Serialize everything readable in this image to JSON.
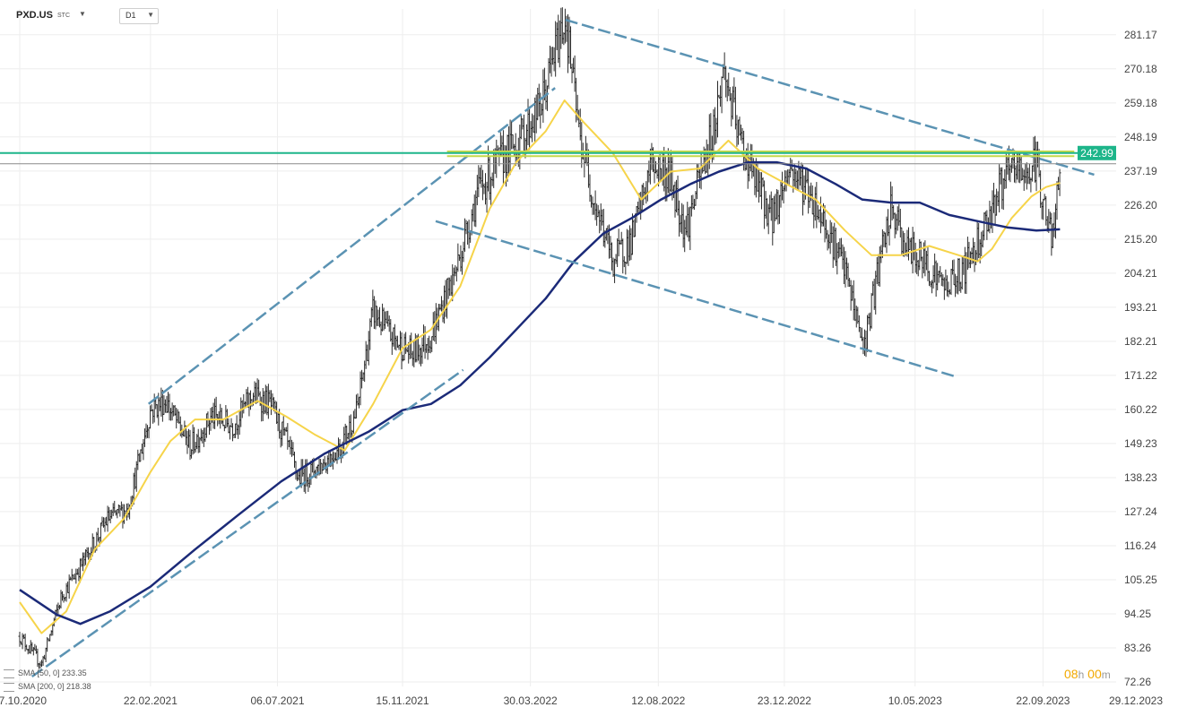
{
  "symbol": {
    "name": "PXD.US",
    "market": "STC"
  },
  "timeframe": "D1",
  "countdown": {
    "hours": "08",
    "h_unit": "h",
    "minutes": "00",
    "m_unit": "m"
  },
  "indicators": [
    {
      "label": "SMA [50, 0]",
      "value": "233.35"
    },
    {
      "label": "SMA [200, 0]",
      "value": "218.38"
    }
  ],
  "colors": {
    "price_bar": "#2b2b2b",
    "sma50": "#f6d44a",
    "sma200": "#1b2a78",
    "trendline": "#5b93b3",
    "resistance": "#c6d84a",
    "level_line": "#1db58a",
    "current_badge": "#6b6b6b",
    "grid": "#eeeeee"
  },
  "chart_data": {
    "type": "line",
    "ylim": [
      72.26,
      292.0
    ],
    "y_ticks": [
      "281.17",
      "270.18",
      "259.18",
      "248.19",
      "237.19",
      "226.20",
      "215.20",
      "204.21",
      "193.21",
      "182.21",
      "171.22",
      "160.22",
      "149.23",
      "138.23",
      "127.24",
      "116.24",
      "105.25",
      "94.25",
      "83.26",
      "72.26"
    ],
    "x_ticks": [
      "07.10.2020",
      "22.02.2021",
      "06.07.2021",
      "15.11.2021",
      "30.03.2022",
      "12.08.2022",
      "23.12.2022",
      "10.05.2023",
      "22.09.2023",
      "29.12.2023"
    ],
    "horizontal_levels": [
      {
        "value": 242.99,
        "label": "242.99",
        "kind": "level"
      },
      {
        "value": 239.53,
        "label": "239.53",
        "kind": "current"
      }
    ],
    "price_keypoints": [
      {
        "date": "2020-10-07",
        "value": 87
      },
      {
        "date": "2020-10-30",
        "value": 78
      },
      {
        "date": "2020-11-20",
        "value": 100
      },
      {
        "date": "2020-12-15",
        "value": 112
      },
      {
        "date": "2021-01-08",
        "value": 125
      },
      {
        "date": "2021-01-29",
        "value": 128
      },
      {
        "date": "2021-02-22",
        "value": 160
      },
      {
        "date": "2021-03-10",
        "value": 163
      },
      {
        "date": "2021-04-05",
        "value": 148
      },
      {
        "date": "2021-04-28",
        "value": 158
      },
      {
        "date": "2021-05-20",
        "value": 155
      },
      {
        "date": "2021-06-10",
        "value": 165
      },
      {
        "date": "2021-06-28",
        "value": 162
      },
      {
        "date": "2021-07-15",
        "value": 150
      },
      {
        "date": "2021-07-28",
        "value": 138
      },
      {
        "date": "2021-08-20",
        "value": 142
      },
      {
        "date": "2021-09-10",
        "value": 148
      },
      {
        "date": "2021-09-28",
        "value": 160
      },
      {
        "date": "2021-10-15",
        "value": 192
      },
      {
        "date": "2021-11-05",
        "value": 183
      },
      {
        "date": "2021-11-25",
        "value": 178
      },
      {
        "date": "2021-12-15",
        "value": 184
      },
      {
        "date": "2022-01-10",
        "value": 205
      },
      {
        "date": "2022-02-02",
        "value": 230
      },
      {
        "date": "2022-02-25",
        "value": 240
      },
      {
        "date": "2022-03-20",
        "value": 248
      },
      {
        "date": "2022-04-10",
        "value": 258
      },
      {
        "date": "2022-04-28",
        "value": 279
      },
      {
        "date": "2022-05-06",
        "value": 287
      },
      {
        "date": "2022-05-20",
        "value": 250
      },
      {
        "date": "2022-06-05",
        "value": 228
      },
      {
        "date": "2022-06-25",
        "value": 208
      },
      {
        "date": "2022-07-15",
        "value": 215
      },
      {
        "date": "2022-08-05",
        "value": 240
      },
      {
        "date": "2022-08-25",
        "value": 235
      },
      {
        "date": "2022-09-10",
        "value": 218
      },
      {
        "date": "2022-09-25",
        "value": 235
      },
      {
        "date": "2022-10-10",
        "value": 252
      },
      {
        "date": "2022-10-20",
        "value": 270
      },
      {
        "date": "2022-11-05",
        "value": 248
      },
      {
        "date": "2022-11-25",
        "value": 232
      },
      {
        "date": "2022-12-10",
        "value": 222
      },
      {
        "date": "2022-12-28",
        "value": 238
      },
      {
        "date": "2023-01-15",
        "value": 232
      },
      {
        "date": "2023-02-05",
        "value": 220
      },
      {
        "date": "2023-02-25",
        "value": 205
      },
      {
        "date": "2023-03-17",
        "value": 180
      },
      {
        "date": "2023-04-01",
        "value": 205
      },
      {
        "date": "2023-04-15",
        "value": 225
      },
      {
        "date": "2023-05-01",
        "value": 212
      },
      {
        "date": "2023-05-20",
        "value": 208
      },
      {
        "date": "2023-06-10",
        "value": 200
      },
      {
        "date": "2023-06-30",
        "value": 205
      },
      {
        "date": "2023-07-20",
        "value": 218
      },
      {
        "date": "2023-08-08",
        "value": 232
      },
      {
        "date": "2023-08-22",
        "value": 238
      },
      {
        "date": "2023-09-05",
        "value": 236
      },
      {
        "date": "2023-09-15",
        "value": 240
      },
      {
        "date": "2023-09-25",
        "value": 222
      },
      {
        "date": "2023-10-03",
        "value": 215
      },
      {
        "date": "2023-10-10",
        "value": 239.53
      }
    ],
    "series": [
      {
        "name": "SMA [50, 0]",
        "value": 233.35,
        "color": "#f6d44a",
        "points": [
          {
            "date": "2020-10-07",
            "value": 98
          },
          {
            "date": "2020-10-30",
            "value": 88
          },
          {
            "date": "2020-11-25",
            "value": 95
          },
          {
            "date": "2020-12-25",
            "value": 115
          },
          {
            "date": "2021-01-25",
            "value": 125
          },
          {
            "date": "2021-02-22",
            "value": 140
          },
          {
            "date": "2021-03-15",
            "value": 150
          },
          {
            "date": "2021-04-10",
            "value": 157
          },
          {
            "date": "2021-05-10",
            "value": 157
          },
          {
            "date": "2021-06-15",
            "value": 163
          },
          {
            "date": "2021-07-15",
            "value": 158
          },
          {
            "date": "2021-08-15",
            "value": 152
          },
          {
            "date": "2021-09-15",
            "value": 147
          },
          {
            "date": "2021-10-15",
            "value": 162
          },
          {
            "date": "2021-11-15",
            "value": 180
          },
          {
            "date": "2021-12-15",
            "value": 186
          },
          {
            "date": "2022-01-15",
            "value": 200
          },
          {
            "date": "2022-02-15",
            "value": 225
          },
          {
            "date": "2022-03-15",
            "value": 240
          },
          {
            "date": "2022-04-15",
            "value": 250
          },
          {
            "date": "2022-05-05",
            "value": 260
          },
          {
            "date": "2022-05-25",
            "value": 253
          },
          {
            "date": "2022-06-25",
            "value": 243
          },
          {
            "date": "2022-07-25",
            "value": 228
          },
          {
            "date": "2022-08-25",
            "value": 237
          },
          {
            "date": "2022-09-25",
            "value": 238
          },
          {
            "date": "2022-10-25",
            "value": 247
          },
          {
            "date": "2022-11-25",
            "value": 238
          },
          {
            "date": "2022-12-25",
            "value": 233
          },
          {
            "date": "2023-01-25",
            "value": 228
          },
          {
            "date": "2023-02-25",
            "value": 218
          },
          {
            "date": "2023-03-25",
            "value": 210
          },
          {
            "date": "2023-04-25",
            "value": 210
          },
          {
            "date": "2023-05-25",
            "value": 213
          },
          {
            "date": "2023-06-25",
            "value": 210
          },
          {
            "date": "2023-07-15",
            "value": 208
          },
          {
            "date": "2023-07-30",
            "value": 212
          },
          {
            "date": "2023-08-20",
            "value": 222
          },
          {
            "date": "2023-09-10",
            "value": 229
          },
          {
            "date": "2023-09-25",
            "value": 232
          },
          {
            "date": "2023-10-10",
            "value": 233.35
          }
        ]
      },
      {
        "name": "SMA [200, 0]",
        "value": 218.38,
        "color": "#1b2a78",
        "points": [
          {
            "date": "2020-10-07",
            "value": 102
          },
          {
            "date": "2020-11-15",
            "value": 94
          },
          {
            "date": "2020-12-10",
            "value": 91
          },
          {
            "date": "2021-01-10",
            "value": 95
          },
          {
            "date": "2021-02-22",
            "value": 103
          },
          {
            "date": "2021-04-10",
            "value": 115
          },
          {
            "date": "2021-05-25",
            "value": 126
          },
          {
            "date": "2021-07-10",
            "value": 137
          },
          {
            "date": "2021-08-25",
            "value": 146
          },
          {
            "date": "2021-10-10",
            "value": 153
          },
          {
            "date": "2021-11-15",
            "value": 160
          },
          {
            "date": "2021-12-15",
            "value": 162
          },
          {
            "date": "2022-01-15",
            "value": 168
          },
          {
            "date": "2022-02-15",
            "value": 177
          },
          {
            "date": "2022-03-15",
            "value": 186
          },
          {
            "date": "2022-04-15",
            "value": 196
          },
          {
            "date": "2022-05-15",
            "value": 208
          },
          {
            "date": "2022-06-15",
            "value": 217
          },
          {
            "date": "2022-07-15",
            "value": 222
          },
          {
            "date": "2022-08-15",
            "value": 228
          },
          {
            "date": "2022-09-15",
            "value": 233
          },
          {
            "date": "2022-10-15",
            "value": 237
          },
          {
            "date": "2022-11-15",
            "value": 240
          },
          {
            "date": "2022-12-15",
            "value": 240
          },
          {
            "date": "2023-01-15",
            "value": 238
          },
          {
            "date": "2023-02-15",
            "value": 233
          },
          {
            "date": "2023-03-15",
            "value": 228
          },
          {
            "date": "2023-04-15",
            "value": 227
          },
          {
            "date": "2023-05-15",
            "value": 227
          },
          {
            "date": "2023-06-15",
            "value": 223
          },
          {
            "date": "2023-07-15",
            "value": 221
          },
          {
            "date": "2023-08-15",
            "value": 219
          },
          {
            "date": "2023-09-15",
            "value": 218
          },
          {
            "date": "2023-10-10",
            "value": 218.38
          }
        ]
      }
    ],
    "trendlines": [
      {
        "name": "channel-upper",
        "from": {
          "date": "2021-02-20",
          "value": 162
        },
        "to": {
          "date": "2022-04-25",
          "value": 264
        }
      },
      {
        "name": "channel-lower",
        "from": {
          "date": "2020-10-20",
          "value": 74
        },
        "to": {
          "date": "2022-01-18",
          "value": 173
        }
      },
      {
        "name": "descending-upper",
        "from": {
          "date": "2022-05-06",
          "value": 286
        },
        "to": {
          "date": "2023-11-15",
          "value": 236
        }
      },
      {
        "name": "descending-lower",
        "from": {
          "date": "2021-12-20",
          "value": 221
        },
        "to": {
          "date": "2023-06-20",
          "value": 171
        }
      },
      {
        "name": "resistance-zone",
        "from": {
          "date": "2022-01-01",
          "value": 243.5
        },
        "to": {
          "date": "2023-10-25",
          "value": 243.5
        }
      },
      {
        "name": "resistance-zone-2",
        "from": {
          "date": "2022-01-01",
          "value": 242.0
        },
        "to": {
          "date": "2023-10-25",
          "value": 242.0
        }
      }
    ]
  }
}
